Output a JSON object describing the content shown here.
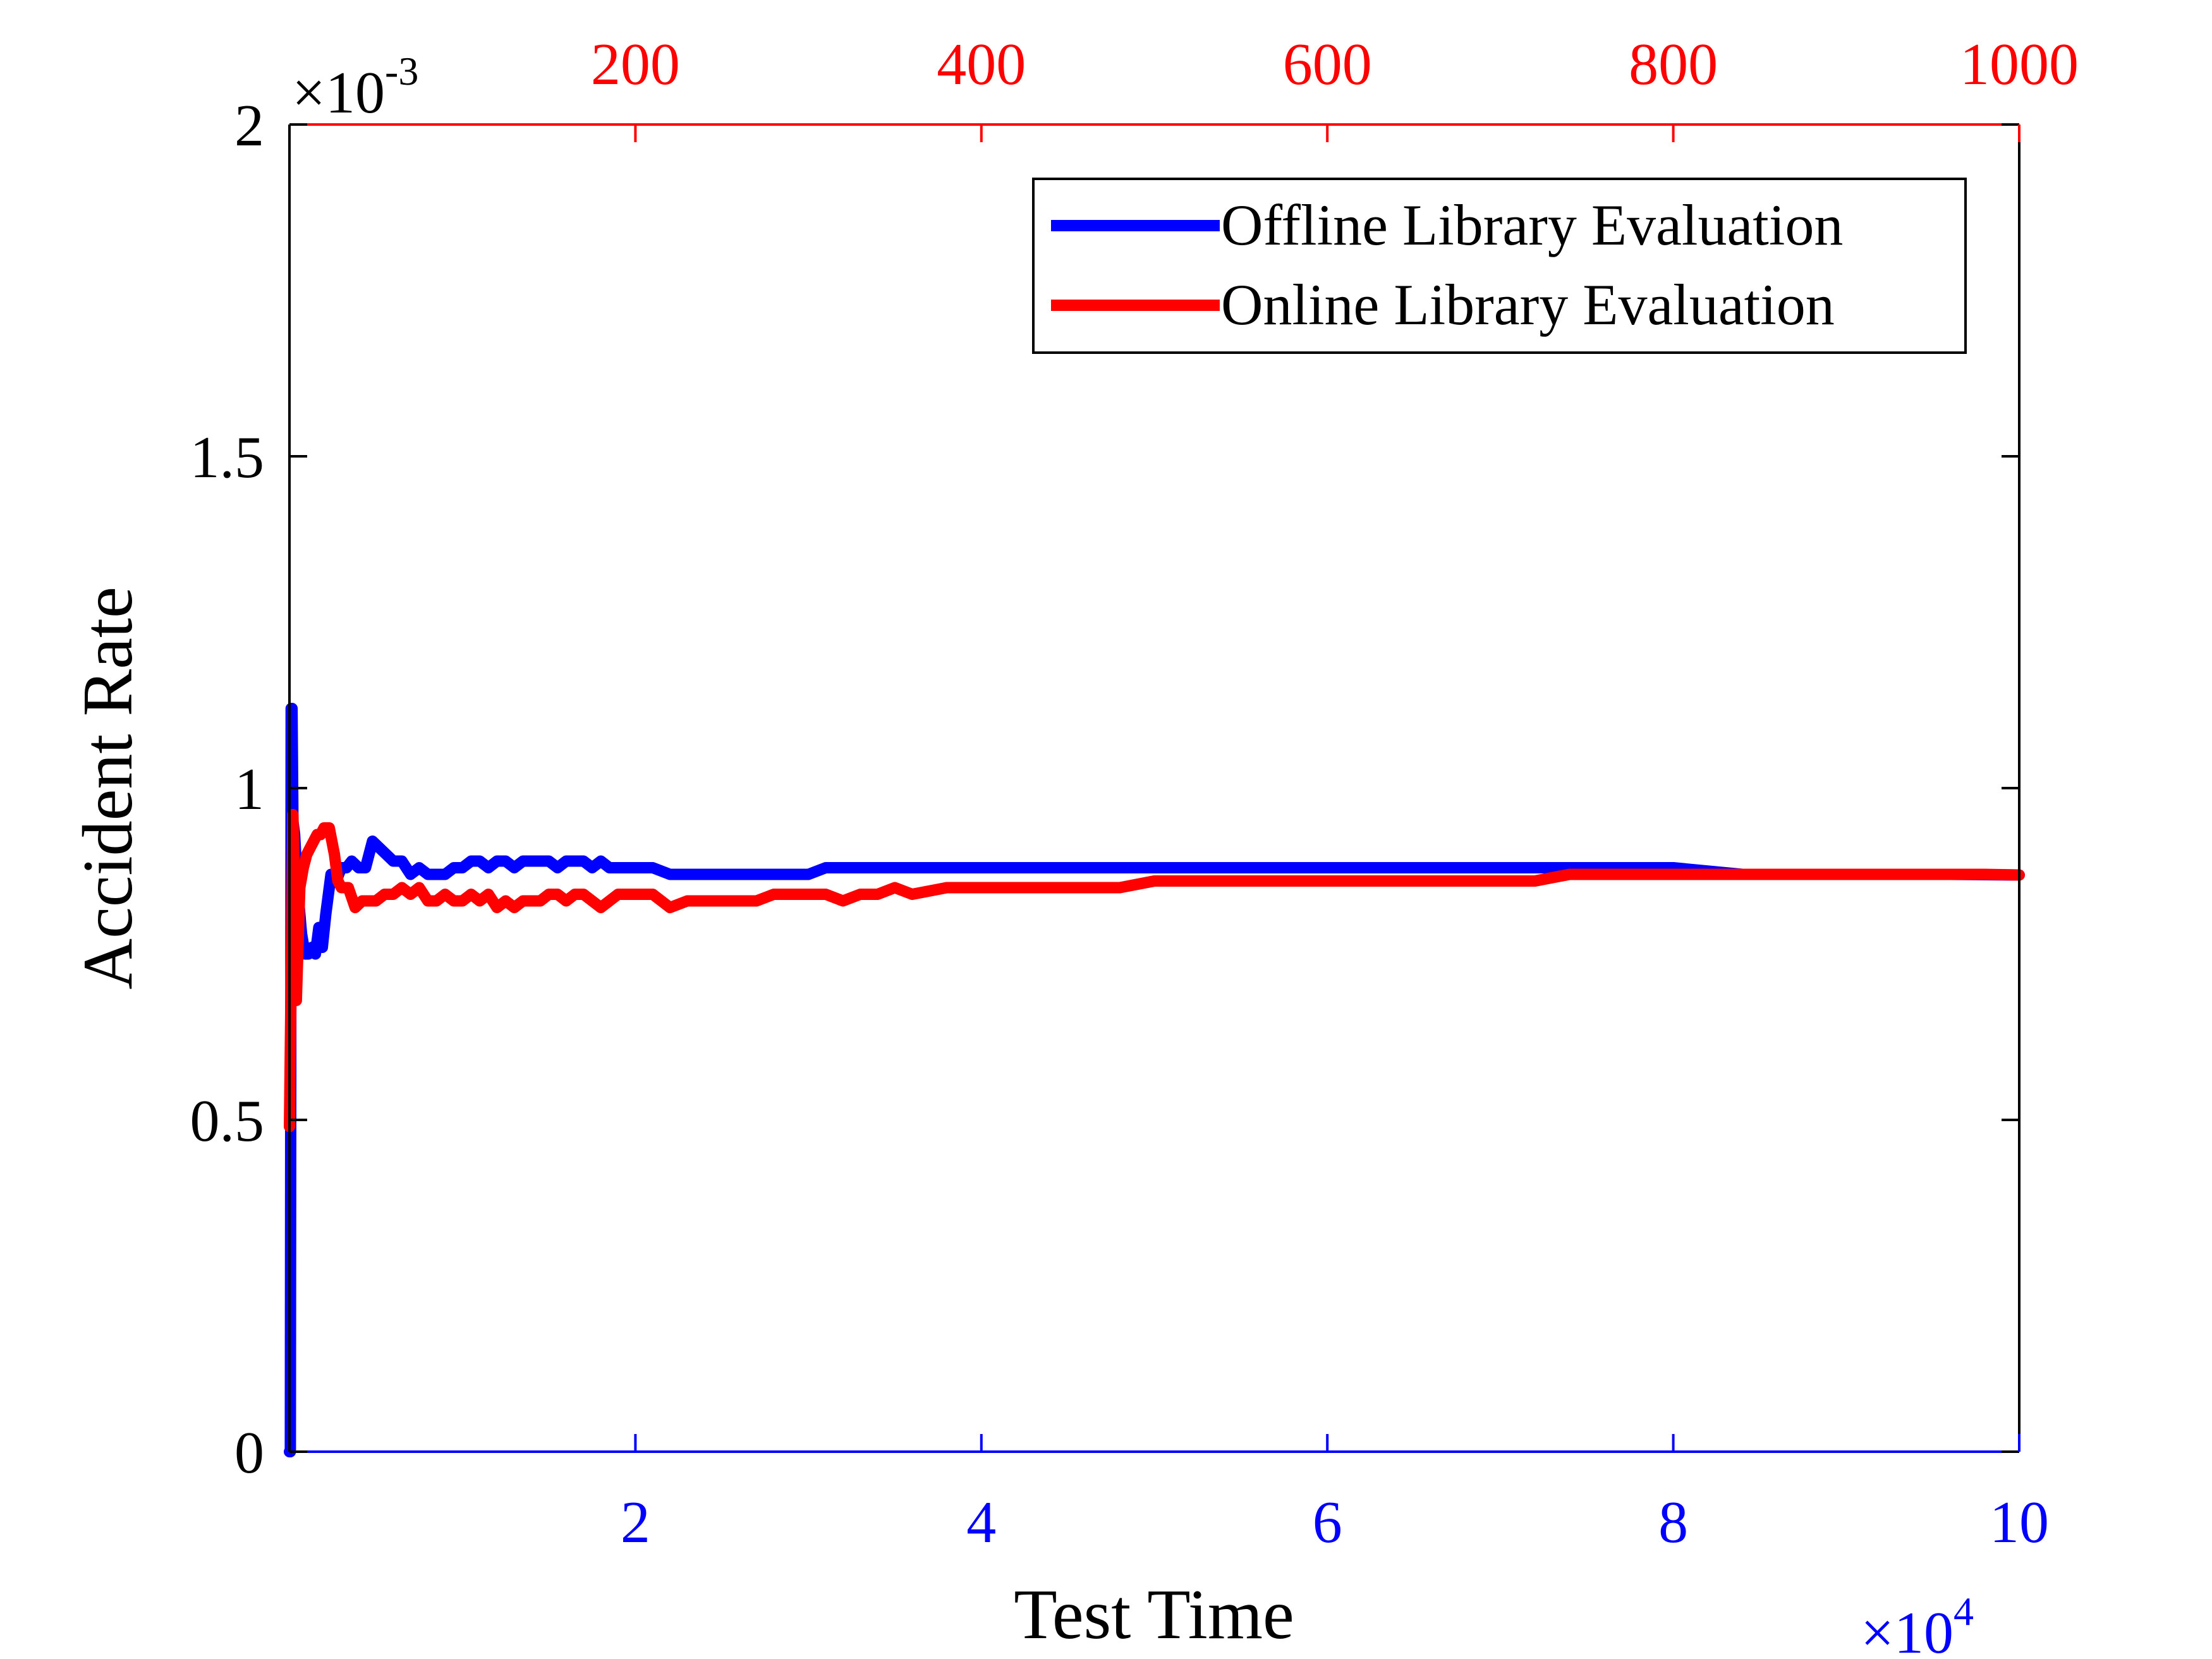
{
  "chart_data": {
    "type": "line",
    "xlabel": "Test Time",
    "ylabel": "Accident Rate",
    "bottom_axis": {
      "range": [
        0,
        100000
      ],
      "ticks": [
        20000,
        40000,
        60000,
        80000,
        100000
      ],
      "tick_labels": [
        "2",
        "4",
        "6",
        "8",
        "10"
      ],
      "exponent_label": "×10",
      "exponent_power": "4",
      "color": "#0000ff"
    },
    "top_axis": {
      "range": [
        0,
        1000
      ],
      "ticks": [
        200,
        400,
        600,
        800,
        1000
      ],
      "tick_labels": [
        "200",
        "400",
        "600",
        "800",
        "1000"
      ],
      "color": "#ff0000"
    },
    "y_axis": {
      "range": [
        0,
        0.002
      ],
      "ticks": [
        0,
        0.0005,
        0.001,
        0.0015,
        0.002
      ],
      "tick_labels": [
        "0",
        "0.5",
        "1",
        "1.5",
        "2"
      ],
      "exponent_label": "×10",
      "exponent_power": "-3"
    },
    "grid": false,
    "legend_position": "top-right",
    "series": [
      {
        "name": "Offline Library Evaluation",
        "color": "#0000ff",
        "axis": "bottom",
        "x": [
          0,
          50,
          100,
          150,
          200,
          300,
          400,
          500,
          700,
          900,
          1100,
          1300,
          1500,
          1700,
          1900,
          2100,
          2400,
          2700,
          3000,
          3300,
          3600,
          4000,
          4400,
          4800,
          5200,
          5600,
          6000,
          6500,
          7000,
          7500,
          8000,
          8500,
          9000,
          9500,
          10000,
          10500,
          11000,
          11500,
          12000,
          12500,
          13000,
          13500,
          14000,
          14500,
          15000,
          15500,
          16000,
          16500,
          17000,
          17500,
          18000,
          18500,
          19000,
          20000,
          21000,
          22000,
          23000,
          24000,
          25000,
          26000,
          27000,
          28000,
          29000,
          30000,
          31000,
          32000,
          33000,
          34000,
          35000,
          36000,
          38000,
          40000,
          42000,
          44000,
          46000,
          48000,
          50000,
          52000,
          55000,
          58000,
          61000,
          64000,
          67000,
          70000,
          73000,
          76000,
          80000,
          84000,
          88000,
          92000,
          96000,
          100000
        ],
        "y": [
          0,
          0,
          0.00112,
          0.00112,
          0.00095,
          0.00093,
          0.00088,
          0.00084,
          0.00078,
          0.00075,
          0.00075,
          0.00076,
          0.00075,
          0.00079,
          0.00076,
          0.00081,
          0.00087,
          0.00086,
          0.00088,
          0.00088,
          0.00089,
          0.00088,
          0.00088,
          0.00092,
          0.00091,
          0.0009,
          0.00089,
          0.00089,
          0.00087,
          0.00088,
          0.00087,
          0.00087,
          0.00087,
          0.00088,
          0.00088,
          0.00089,
          0.00089,
          0.00088,
          0.00089,
          0.00089,
          0.00088,
          0.00089,
          0.00089,
          0.00089,
          0.00089,
          0.00088,
          0.00089,
          0.00089,
          0.00089,
          0.00088,
          0.00089,
          0.00088,
          0.00088,
          0.00088,
          0.00088,
          0.00087,
          0.00087,
          0.00087,
          0.00087,
          0.00087,
          0.00087,
          0.00087,
          0.00087,
          0.00087,
          0.00088,
          0.00088,
          0.00088,
          0.00088,
          0.00088,
          0.00088,
          0.00088,
          0.00088,
          0.00088,
          0.00088,
          0.00088,
          0.00088,
          0.00088,
          0.00088,
          0.00088,
          0.00088,
          0.00088,
          0.00088,
          0.00088,
          0.00088,
          0.00088,
          0.00088,
          0.00088,
          0.00087,
          0.00087,
          0.00087,
          0.00087,
          0.000869
        ]
      },
      {
        "name": "Online Library Evaluation",
        "color": "#ff0000",
        "axis": "top",
        "x": [
          0,
          2,
          4,
          6,
          8,
          10,
          12,
          14,
          16,
          18,
          20,
          23,
          26,
          28,
          30,
          34,
          38,
          42,
          46,
          50,
          55,
          60,
          65,
          70,
          75,
          80,
          85,
          90,
          95,
          100,
          105,
          110,
          115,
          120,
          125,
          130,
          135,
          140,
          145,
          150,
          155,
          160,
          165,
          170,
          175,
          180,
          185,
          190,
          195,
          200,
          210,
          220,
          230,
          240,
          250,
          260,
          270,
          280,
          290,
          300,
          310,
          320,
          330,
          340,
          350,
          360,
          380,
          400,
          420,
          440,
          460,
          480,
          500,
          520,
          540,
          560,
          580,
          600,
          620,
          640,
          660,
          680,
          700,
          720,
          740,
          760,
          780,
          800,
          820,
          840,
          860,
          880,
          900,
          920,
          940,
          960,
          980,
          1000
        ],
        "y": [
          0.00049,
          0.00096,
          0.00068,
          0.00085,
          0.00088,
          0.0009,
          0.00091,
          0.00092,
          0.00093,
          0.00093,
          0.00094,
          0.00094,
          0.0009,
          0.00086,
          0.00085,
          0.00085,
          0.00082,
          0.00083,
          0.00083,
          0.00083,
          0.00084,
          0.00084,
          0.00085,
          0.00084,
          0.00085,
          0.00083,
          0.00083,
          0.00084,
          0.00083,
          0.00083,
          0.00084,
          0.00083,
          0.00084,
          0.00082,
          0.00083,
          0.00082,
          0.00083,
          0.00083,
          0.00083,
          0.00084,
          0.00084,
          0.00083,
          0.00084,
          0.00084,
          0.00083,
          0.00082,
          0.00083,
          0.00084,
          0.00084,
          0.00084,
          0.00084,
          0.00082,
          0.00083,
          0.00083,
          0.00083,
          0.00083,
          0.00083,
          0.00084,
          0.00084,
          0.00084,
          0.00084,
          0.00083,
          0.00084,
          0.00084,
          0.00085,
          0.00084,
          0.00085,
          0.00085,
          0.00085,
          0.00085,
          0.00085,
          0.00085,
          0.00086,
          0.00086,
          0.00086,
          0.00086,
          0.00086,
          0.00086,
          0.00086,
          0.00086,
          0.00086,
          0.00086,
          0.00086,
          0.00086,
          0.00087,
          0.00087,
          0.00087,
          0.00087,
          0.00087,
          0.00087,
          0.00087,
          0.00087,
          0.00087,
          0.00087,
          0.00087,
          0.00087,
          0.00087,
          0.000869
        ]
      }
    ]
  }
}
